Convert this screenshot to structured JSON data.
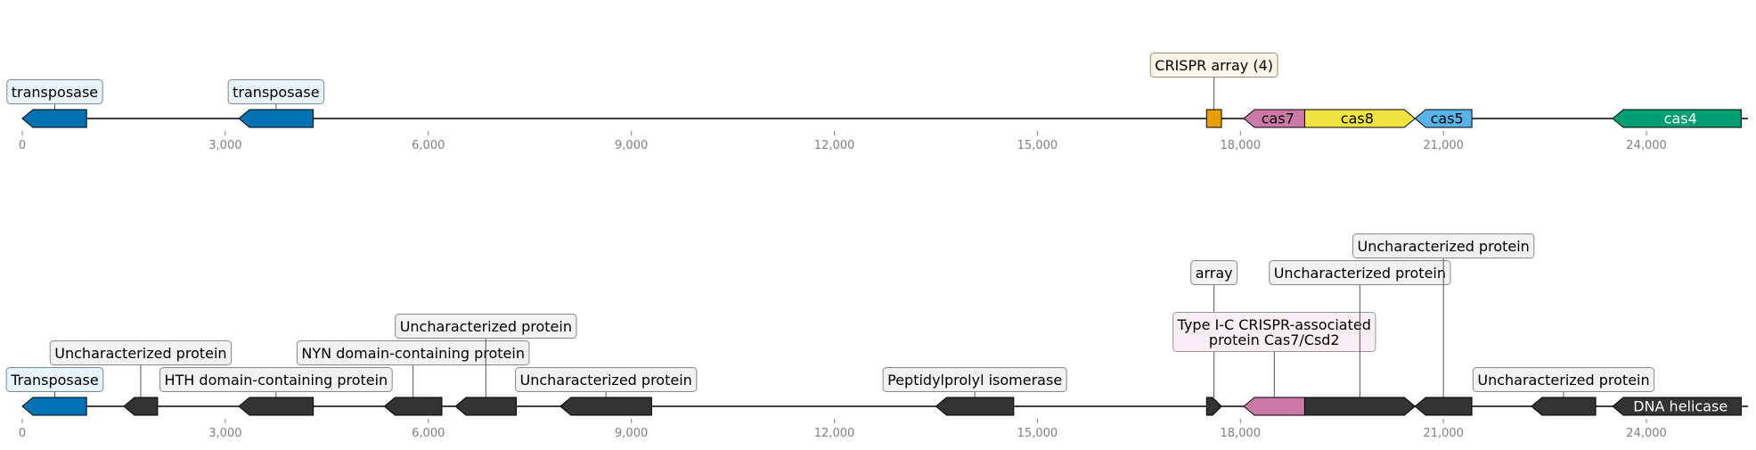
{
  "axis": {
    "min": 0,
    "max": 25500,
    "ticks": [
      0,
      3000,
      6000,
      9000,
      12000,
      15000,
      18000,
      21000,
      24000
    ],
    "tick_labels": [
      "0",
      "3,000",
      "6,000",
      "9,000",
      "12,000",
      "15,000",
      "18,000",
      "21,000",
      "24,000"
    ]
  },
  "tracks": [
    {
      "features": [
        {
          "start": 0,
          "end": 950,
          "strand": "-",
          "color": "#0072B2"
        },
        {
          "start": 3200,
          "end": 4300,
          "strand": "-",
          "color": "#0072B2"
        },
        {
          "start": 17500,
          "end": 17720,
          "strand": "box",
          "color": "#E69F00"
        },
        {
          "start": 18050,
          "end": 18950,
          "strand": "-",
          "color": "#CC79A7",
          "text": "cas7",
          "text_color": "#000000"
        },
        {
          "start": 18950,
          "end": 20580,
          "strand": "+",
          "color": "#F0E442",
          "text": "cas8",
          "text_color": "#000000"
        },
        {
          "start": 20580,
          "end": 21420,
          "strand": "-",
          "color": "#56B4E9",
          "text": "cas5",
          "text_color": "#000000"
        },
        {
          "start": 23500,
          "end": 25400,
          "strand": "-",
          "color": "#009E73",
          "text": "cas4",
          "text_color": "#ffffff"
        }
      ],
      "labels": [
        {
          "text": [
            "transposase"
          ],
          "x": 480,
          "level": 0,
          "bg": "#e8f4fb",
          "border": "#7a8a96"
        },
        {
          "text": [
            "transposase"
          ],
          "x": 3750,
          "level": 0,
          "bg": "#e8f4fb",
          "border": "#7a8a96"
        },
        {
          "text": [
            "CRISPR array (4)"
          ],
          "x": 17610,
          "level": 1,
          "bg": "#fdf6e6",
          "border": "#9a8c70"
        }
      ]
    },
    {
      "features": [
        {
          "start": 0,
          "end": 950,
          "strand": "-",
          "color": "#0072B2"
        },
        {
          "start": 1500,
          "end": 2000,
          "strand": "-",
          "color": "#333333"
        },
        {
          "start": 3200,
          "end": 4300,
          "strand": "-",
          "color": "#333333"
        },
        {
          "start": 5350,
          "end": 6200,
          "strand": "-",
          "color": "#333333"
        },
        {
          "start": 6400,
          "end": 7300,
          "strand": "-",
          "color": "#333333"
        },
        {
          "start": 7950,
          "end": 9300,
          "strand": "-",
          "color": "#333333"
        },
        {
          "start": 13500,
          "end": 14650,
          "strand": "-",
          "color": "#333333"
        },
        {
          "start": 17500,
          "end": 17720,
          "strand": "+",
          "color": "#333333"
        },
        {
          "start": 18050,
          "end": 18950,
          "strand": "-",
          "color": "#CC79A7"
        },
        {
          "start": 18950,
          "end": 20580,
          "strand": "+",
          "color": "#333333"
        },
        {
          "start": 20580,
          "end": 21420,
          "strand": "-",
          "color": "#333333"
        },
        {
          "start": 22300,
          "end": 23250,
          "strand": "-",
          "color": "#333333"
        },
        {
          "start": 23500,
          "end": 25400,
          "strand": "-",
          "color": "#333333",
          "text": "DNA helicase",
          "text_color": "#ffffff"
        }
      ],
      "labels": [
        {
          "text": [
            "Transposase"
          ],
          "x": 480,
          "level": 0,
          "bg": "#e8f4fb",
          "border": "#7a8a96"
        },
        {
          "text": [
            "Uncharacterized protein"
          ],
          "x": 1750,
          "level": 1,
          "bg": "#f2f2f2",
          "border": "#888888"
        },
        {
          "text": [
            "HTH domain-containing protein"
          ],
          "x": 3750,
          "level": 0,
          "bg": "#f2f2f2",
          "border": "#888888"
        },
        {
          "text": [
            "NYN domain-containing protein"
          ],
          "x": 5775,
          "level": 1,
          "bg": "#f2f2f2",
          "border": "#888888"
        },
        {
          "text": [
            "Uncharacterized protein"
          ],
          "x": 6850,
          "level": 2,
          "bg": "#f2f2f2",
          "border": "#888888"
        },
        {
          "text": [
            "Uncharacterized protein"
          ],
          "x": 8625,
          "level": 0,
          "bg": "#f2f2f2",
          "border": "#888888"
        },
        {
          "text": [
            "Peptidylprolyl isomerase"
          ],
          "x": 14075,
          "level": 0,
          "bg": "#f2f2f2",
          "border": "#888888"
        },
        {
          "text": [
            "array"
          ],
          "x": 17610,
          "level": 4,
          "bg": "#f2f2f2",
          "border": "#888888"
        },
        {
          "text": [
            "Type I-C CRISPR-associated",
            "protein Cas7/Csd2"
          ],
          "x": 18500,
          "level": 1.5,
          "bg": "#f9eef3",
          "border": "#999999"
        },
        {
          "text": [
            "Uncharacterized protein"
          ],
          "x": 19765,
          "level": 4,
          "bg": "#f2f2f2",
          "border": "#888888"
        },
        {
          "text": [
            "Uncharacterized protein"
          ],
          "x": 21000,
          "level": 5,
          "bg": "#f2f2f2",
          "border": "#888888"
        },
        {
          "text": [
            "Uncharacterized protein"
          ],
          "x": 22775,
          "level": 0,
          "bg": "#f2f2f2",
          "border": "#888888"
        }
      ]
    }
  ]
}
